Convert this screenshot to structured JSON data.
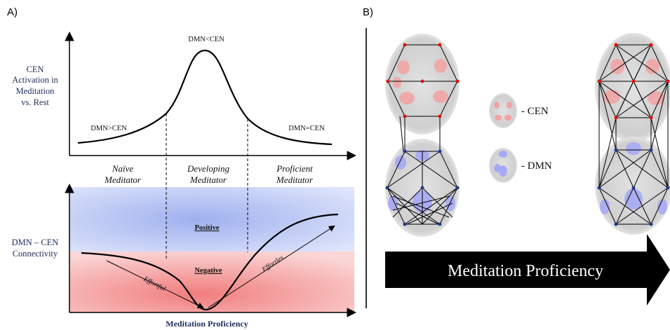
{
  "panel_a": {
    "label": "A)",
    "top_ylabel": [
      "CEN",
      "Activation in",
      "Meditation",
      "vs. Rest"
    ],
    "peak_label": "DMN<CEN",
    "left_label": "DMN>CEN",
    "right_label": "DMN=CEN",
    "stages": [
      {
        "line1": "Naïve",
        "line2": "Meditator"
      },
      {
        "line1": "Developing",
        "line2": "Meditator"
      },
      {
        "line1": "Proficient",
        "line2": "Meditator"
      }
    ],
    "bottom_ylabel": [
      "DMN – CEN",
      "Connectivity"
    ],
    "positive_label": "Positive",
    "negative_label": "Negative",
    "effortful_label": "Effortful",
    "effortless_label": "Effortles",
    "xlabel": "Meditation Proficiency",
    "colors": {
      "navy": "#1f2d5a",
      "positive": "#aebcf0",
      "negative": "#f4a3a3"
    }
  },
  "panel_b": {
    "label": "B)",
    "legend": [
      {
        "label": "- CEN",
        "color": "#f08a8a"
      },
      {
        "label": "- DMN",
        "color": "#8a8cf0"
      }
    ],
    "arrow_label": "Meditation Proficiency"
  }
}
